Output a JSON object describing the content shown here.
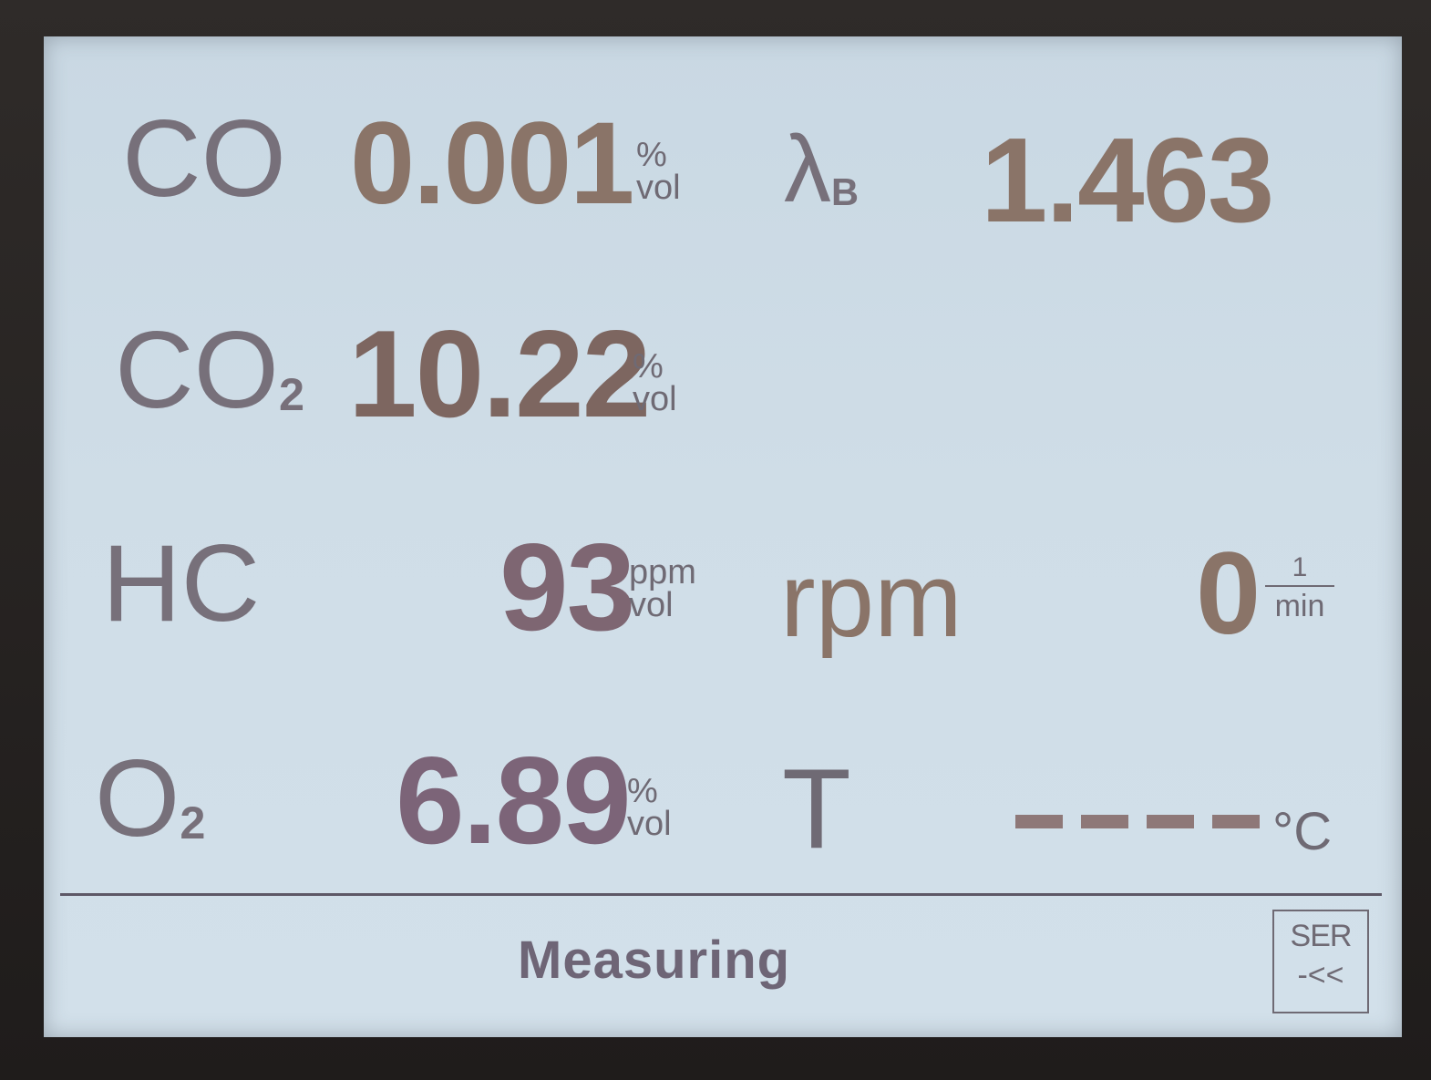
{
  "readings": {
    "co": {
      "label": "CO",
      "value": "0.001",
      "unit_top": "%",
      "unit_bottom": "vol"
    },
    "co2": {
      "label": "CO",
      "sub": "2",
      "value": "10.22",
      "unit_top": "%",
      "unit_bottom": "vol"
    },
    "hc": {
      "label": "HC",
      "value": "93",
      "unit_top": "ppm",
      "unit_bottom": "vol"
    },
    "o2": {
      "label": "O",
      "sub": "2",
      "value": "6.89",
      "unit_top": "%",
      "unit_bottom": "vol"
    },
    "lambda": {
      "label": "λ",
      "sub": "B",
      "value": "1.463"
    },
    "rpm": {
      "label": "rpm",
      "value": "0",
      "unit_num": "1",
      "unit_den": "min"
    },
    "temp": {
      "label": "T",
      "unit": "°C"
    }
  },
  "status": {
    "text": "Measuring",
    "ser_label": "SER",
    "ser_arrow": "-<<"
  },
  "colors": {
    "screen_bg": "#cfdde7",
    "label": "#77707a",
    "value_brown": "#8a7468",
    "value_brown_dark": "#7d6660",
    "value_purple": "#7c6478",
    "status_text": "#6e6576"
  }
}
